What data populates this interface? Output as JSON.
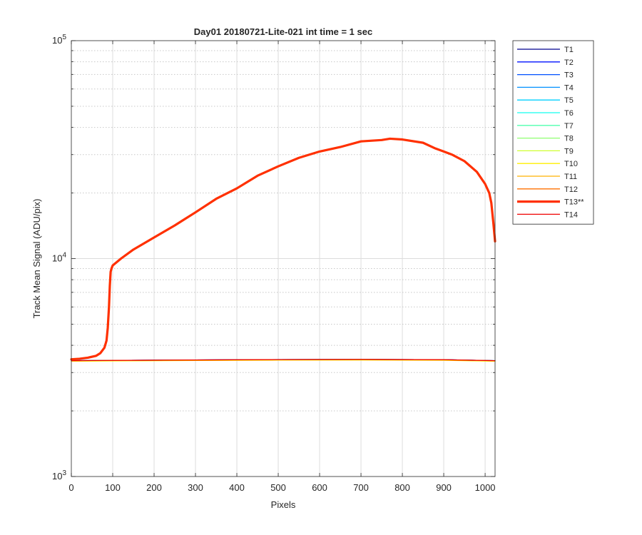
{
  "chart_data": {
    "type": "line",
    "title": "Day01 20180721-Lite-021 int time = 1 sec",
    "xlabel": "Pixels",
    "ylabel": "Track Mean Signal (ADU/pix)",
    "xlim": [
      0,
      1024
    ],
    "ylim": [
      1000,
      100000
    ],
    "yscale": "log",
    "xticks": [
      0,
      100,
      200,
      300,
      400,
      500,
      600,
      700,
      800,
      900,
      1000
    ],
    "xtick_labels": [
      "0",
      "100",
      "200",
      "300",
      "400",
      "500",
      "600",
      "700",
      "800",
      "900",
      "1000"
    ],
    "yticks": [
      1000,
      10000,
      100000
    ],
    "ytick_labels": [
      {
        "base": "10",
        "exp": "3"
      },
      {
        "base": "10",
        "exp": "4"
      },
      {
        "base": "10",
        "exp": "5"
      }
    ],
    "grid": true,
    "legend_position": "outside-top-right",
    "series": [
      {
        "name": "T1",
        "color": "#00008f",
        "x": [
          0,
          100,
          300,
          500,
          700,
          900,
          1024
        ],
        "y": [
          3400,
          3410,
          3425,
          3440,
          3445,
          3435,
          3400
        ]
      },
      {
        "name": "T2",
        "color": "#0010ff",
        "x": [
          0,
          100,
          300,
          500,
          700,
          900,
          1024
        ],
        "y": [
          3405,
          3412,
          3428,
          3442,
          3447,
          3437,
          3402
        ]
      },
      {
        "name": "T3",
        "color": "#0050ff",
        "x": [
          0,
          100,
          300,
          500,
          700,
          900,
          1024
        ],
        "y": [
          3402,
          3411,
          3426,
          3441,
          3446,
          3436,
          3401
        ]
      },
      {
        "name": "T4",
        "color": "#0090ff",
        "x": [
          0,
          100,
          300,
          500,
          700,
          900,
          1024
        ],
        "y": [
          3398,
          3408,
          3423,
          3438,
          3443,
          3433,
          3398
        ]
      },
      {
        "name": "T5",
        "color": "#00d0ff",
        "x": [
          0,
          100,
          300,
          500,
          700,
          900,
          1024
        ],
        "y": [
          3396,
          3406,
          3421,
          3436,
          3441,
          3431,
          3396
        ]
      },
      {
        "name": "T6",
        "color": "#10ffef",
        "x": [
          0,
          100,
          300,
          500,
          700,
          900,
          1024
        ],
        "y": [
          3394,
          3404,
          3419,
          3434,
          3439,
          3429,
          3394
        ]
      },
      {
        "name": "T7",
        "color": "#50ffaf",
        "x": [
          0,
          100,
          300,
          500,
          700,
          900,
          1024
        ],
        "y": [
          3392,
          3402,
          3417,
          3432,
          3437,
          3427,
          3392
        ]
      },
      {
        "name": "T8",
        "color": "#8fff70",
        "x": [
          0,
          100,
          300,
          500,
          700,
          900,
          1024
        ],
        "y": [
          3390,
          3400,
          3415,
          3430,
          3435,
          3425,
          3390
        ]
      },
      {
        "name": "T9",
        "color": "#cfff30",
        "x": [
          0,
          100,
          300,
          500,
          700,
          900,
          1024
        ],
        "y": [
          3385,
          3395,
          3410,
          3425,
          3430,
          3420,
          3385
        ]
      },
      {
        "name": "T10",
        "color": "#ffef00",
        "x": [
          0,
          100,
          300,
          500,
          700,
          900,
          1024
        ],
        "y": [
          3380,
          3390,
          3405,
          3418,
          3422,
          3412,
          3380
        ]
      },
      {
        "name": "T11",
        "color": "#ffb000",
        "x": [
          0,
          100,
          300,
          500,
          700,
          900,
          1024
        ],
        "y": [
          3395,
          3405,
          3420,
          3435,
          3440,
          3430,
          3395
        ]
      },
      {
        "name": "T12",
        "color": "#ff7000",
        "x": [
          0,
          100,
          300,
          500,
          700,
          900,
          1024
        ],
        "y": [
          3400,
          3410,
          3425,
          3440,
          3445,
          3435,
          3400
        ]
      },
      {
        "name": "T13**",
        "color": "#ff3000",
        "emphasized": true,
        "x": [
          0,
          20,
          40,
          60,
          70,
          80,
          85,
          88,
          91,
          93,
          95,
          97,
          100,
          120,
          150,
          200,
          250,
          300,
          350,
          400,
          450,
          500,
          550,
          600,
          650,
          700,
          750,
          770,
          800,
          850,
          880,
          900,
          920,
          950,
          980,
          1000,
          1010,
          1015,
          1020,
          1024
        ],
        "y": [
          3450,
          3470,
          3510,
          3580,
          3680,
          3900,
          4200,
          4800,
          6000,
          7500,
          8700,
          9000,
          9300,
          10000,
          11000,
          12500,
          14200,
          16300,
          18800,
          21000,
          24000,
          26500,
          29000,
          31000,
          32500,
          34500,
          35000,
          35500,
          35200,
          34000,
          32000,
          31000,
          30000,
          28000,
          25000,
          22000,
          20000,
          18000,
          14500,
          12000
        ]
      },
      {
        "name": "T14",
        "color": "#ef0000",
        "x": [
          0,
          100,
          300,
          500,
          700,
          900,
          1024
        ],
        "y": [
          3400,
          3410,
          3425,
          3440,
          3445,
          3435,
          3400
        ]
      }
    ]
  }
}
